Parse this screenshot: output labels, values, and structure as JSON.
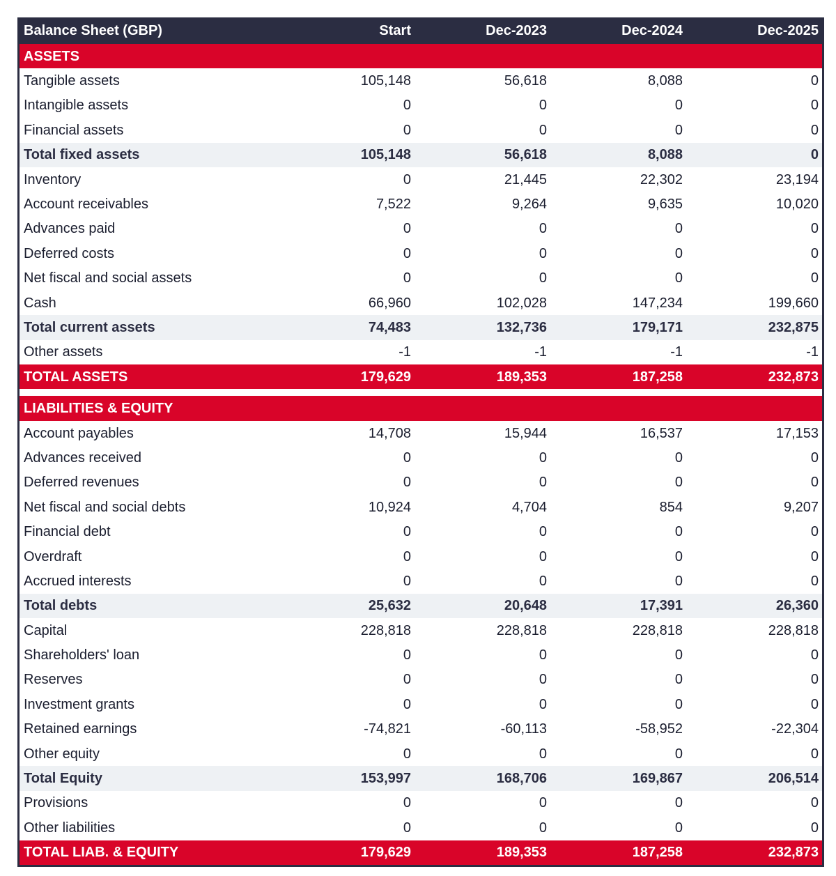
{
  "header": {
    "title": "Balance Sheet (GBP)",
    "columns": [
      "Start",
      "Dec-2023",
      "Dec-2024",
      "Dec-2025"
    ]
  },
  "colors": {
    "header_bg": "#2b2d42",
    "accent_red": "#d90429",
    "subtotal_bg": "#eef1f4"
  },
  "rows": [
    {
      "type": "section",
      "label": "ASSETS",
      "values": []
    },
    {
      "type": "row",
      "label": "Tangible assets",
      "values": [
        "105,148",
        "56,618",
        "8,088",
        "0"
      ]
    },
    {
      "type": "row",
      "label": "Intangible assets",
      "values": [
        "0",
        "0",
        "0",
        "0"
      ]
    },
    {
      "type": "row",
      "label": "Financial assets",
      "values": [
        "0",
        "0",
        "0",
        "0"
      ]
    },
    {
      "type": "subtotal",
      "label": "Total fixed assets",
      "values": [
        "105,148",
        "56,618",
        "8,088",
        "0"
      ]
    },
    {
      "type": "row",
      "label": "Inventory",
      "values": [
        "0",
        "21,445",
        "22,302",
        "23,194"
      ]
    },
    {
      "type": "row",
      "label": "Account receivables",
      "values": [
        "7,522",
        "9,264",
        "9,635",
        "10,020"
      ]
    },
    {
      "type": "row",
      "label": "Advances paid",
      "values": [
        "0",
        "0",
        "0",
        "0"
      ]
    },
    {
      "type": "row",
      "label": "Deferred costs",
      "values": [
        "0",
        "0",
        "0",
        "0"
      ]
    },
    {
      "type": "row",
      "label": "Net fiscal and social assets",
      "values": [
        "0",
        "0",
        "0",
        "0"
      ]
    },
    {
      "type": "row",
      "label": "Cash",
      "values": [
        "66,960",
        "102,028",
        "147,234",
        "199,660"
      ]
    },
    {
      "type": "subtotal",
      "label": "Total current assets",
      "values": [
        "74,483",
        "132,736",
        "179,171",
        "232,875"
      ]
    },
    {
      "type": "row",
      "label": "Other assets",
      "values": [
        "-1",
        "-1",
        "-1",
        "-1"
      ]
    },
    {
      "type": "total",
      "label": "TOTAL ASSETS",
      "values": [
        "179,629",
        "189,353",
        "187,258",
        "232,873"
      ]
    },
    {
      "type": "spacer",
      "label": "",
      "values": []
    },
    {
      "type": "section",
      "label": "LIABILITIES & EQUITY",
      "values": []
    },
    {
      "type": "row",
      "label": "Account payables",
      "values": [
        "14,708",
        "15,944",
        "16,537",
        "17,153"
      ]
    },
    {
      "type": "row",
      "label": "Advances received",
      "values": [
        "0",
        "0",
        "0",
        "0"
      ]
    },
    {
      "type": "row",
      "label": "Deferred revenues",
      "values": [
        "0",
        "0",
        "0",
        "0"
      ]
    },
    {
      "type": "row",
      "label": "Net fiscal and social debts",
      "values": [
        "10,924",
        "4,704",
        "854",
        "9,207"
      ]
    },
    {
      "type": "row",
      "label": "Financial debt",
      "values": [
        "0",
        "0",
        "0",
        "0"
      ]
    },
    {
      "type": "row",
      "label": "Overdraft",
      "values": [
        "0",
        "0",
        "0",
        "0"
      ]
    },
    {
      "type": "row",
      "label": "Accrued interests",
      "values": [
        "0",
        "0",
        "0",
        "0"
      ]
    },
    {
      "type": "subtotal",
      "label": "Total debts",
      "values": [
        "25,632",
        "20,648",
        "17,391",
        "26,360"
      ]
    },
    {
      "type": "row",
      "label": "Capital",
      "values": [
        "228,818",
        "228,818",
        "228,818",
        "228,818"
      ]
    },
    {
      "type": "row",
      "label": "Shareholders' loan",
      "values": [
        "0",
        "0",
        "0",
        "0"
      ]
    },
    {
      "type": "row",
      "label": "Reserves",
      "values": [
        "0",
        "0",
        "0",
        "0"
      ]
    },
    {
      "type": "row",
      "label": "Investment grants",
      "values": [
        "0",
        "0",
        "0",
        "0"
      ]
    },
    {
      "type": "row",
      "label": "Retained earnings",
      "values": [
        "-74,821",
        "-60,113",
        "-58,952",
        "-22,304"
      ]
    },
    {
      "type": "row",
      "label": "Other equity",
      "values": [
        "0",
        "0",
        "0",
        "0"
      ]
    },
    {
      "type": "subtotal",
      "label": "Total Equity",
      "values": [
        "153,997",
        "168,706",
        "169,867",
        "206,514"
      ]
    },
    {
      "type": "row",
      "label": "Provisions",
      "values": [
        "0",
        "0",
        "0",
        "0"
      ]
    },
    {
      "type": "row",
      "label": "Other liabilities",
      "values": [
        "0",
        "0",
        "0",
        "0"
      ]
    },
    {
      "type": "total",
      "label": "TOTAL LIAB. & EQUITY",
      "values": [
        "179,629",
        "189,353",
        "187,258",
        "232,873"
      ]
    }
  ]
}
